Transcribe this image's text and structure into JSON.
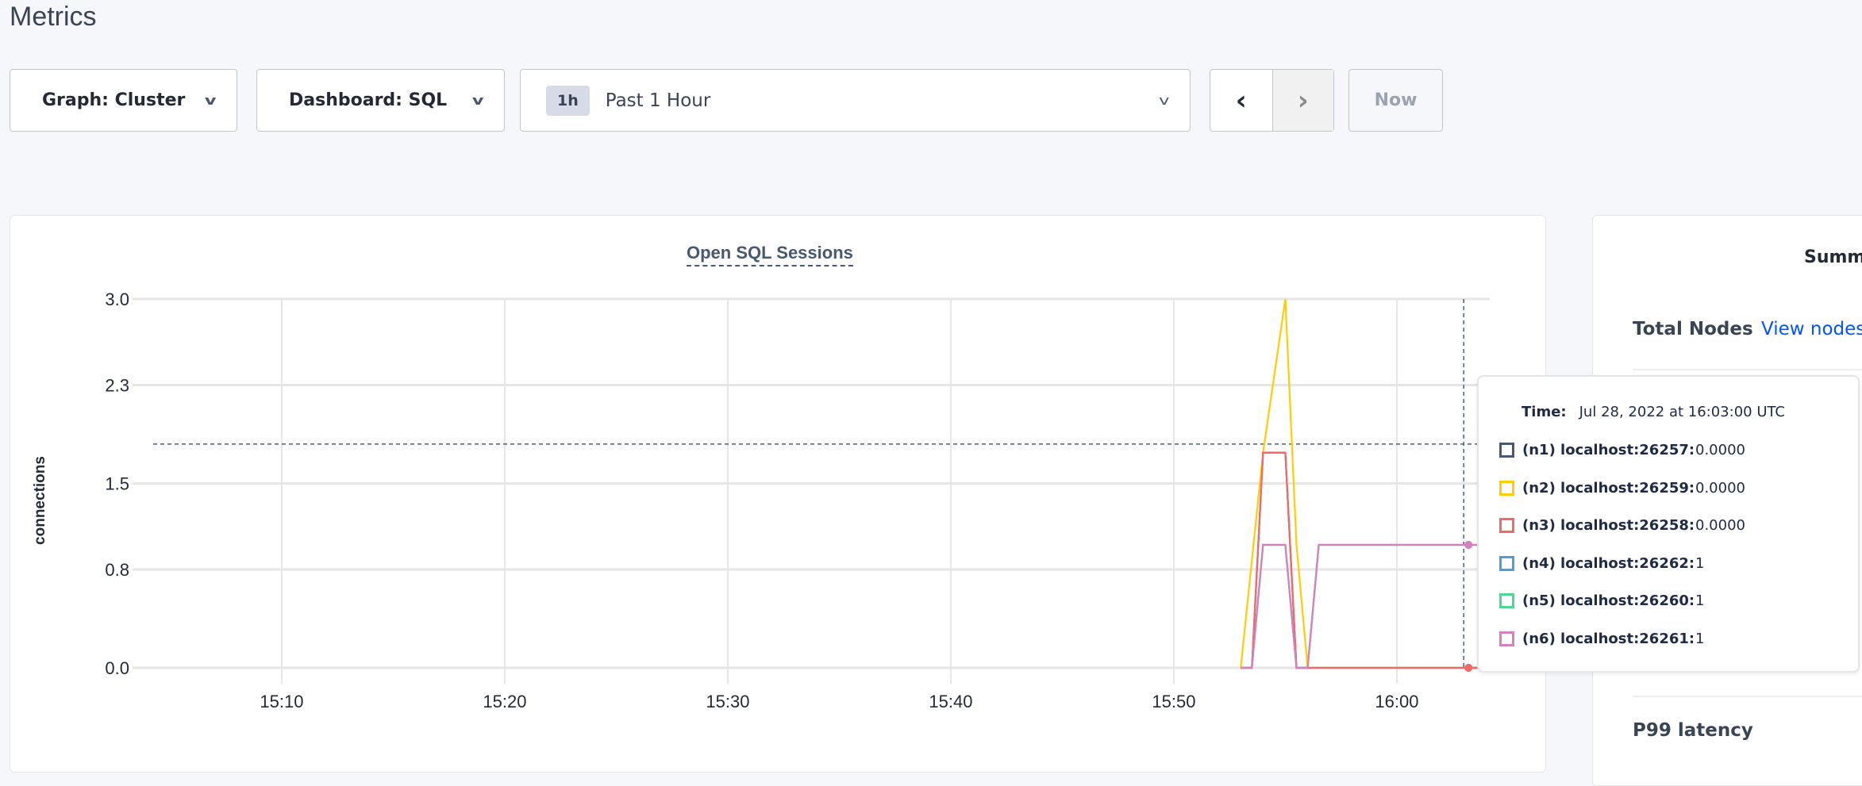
{
  "page": {
    "title": "Metrics"
  },
  "controls": {
    "graph": "Graph: Cluster",
    "dashboard": "Dashboard: SQL",
    "range_badge": "1h",
    "range_label": "Past 1 Hour",
    "prev": "‹",
    "next": "›",
    "now": "Now"
  },
  "sidebar": {
    "summary": "Summ",
    "total_nodes": "Total Nodes",
    "view_nodes": "View nodes",
    "p99": "P99 latency"
  },
  "chart_data": {
    "type": "line",
    "title": "Open SQL Sessions",
    "ylabel": "connections",
    "xlabel": "",
    "ylim": [
      0,
      3
    ],
    "yticks": [
      "0.0",
      "0.8",
      "1.5",
      "2.3",
      "3.0"
    ],
    "xlim": [
      "15:03:40",
      "16:04:10"
    ],
    "xticks": [
      "15:10",
      "15:20",
      "15:30",
      "15:40",
      "15:50",
      "16:00"
    ],
    "grid": true,
    "hover_time": "16:03:00",
    "hover_threshold": 1.82,
    "series": [
      {
        "name": "(n1) localhost:26257",
        "color": "#475872",
        "points": [
          [
            "15:53:00",
            0
          ],
          [
            "15:53:30",
            0
          ],
          [
            "15:54:00",
            1.75
          ],
          [
            "15:55:00",
            1.75
          ],
          [
            "15:55:30",
            0
          ],
          [
            "16:03:00",
            0
          ]
        ]
      },
      {
        "name": "(n4) localhost:26262",
        "color": "#4e9fd1",
        "points": [
          [
            "15:53:00",
            0
          ],
          [
            "15:53:30",
            0
          ],
          [
            "15:54:00",
            1
          ],
          [
            "15:55:00",
            1
          ],
          [
            "15:55:30",
            0
          ],
          [
            "15:56:00",
            0
          ],
          [
            "15:56:30",
            1
          ],
          [
            "16:03:00",
            1
          ]
        ]
      },
      {
        "name": "(n5) localhost:26260",
        "color": "#49d990",
        "points": [
          [
            "15:53:00",
            0
          ],
          [
            "15:53:30",
            0
          ],
          [
            "15:54:00",
            1
          ],
          [
            "15:55:00",
            1
          ],
          [
            "15:55:30",
            0
          ],
          [
            "15:56:00",
            0
          ],
          [
            "15:56:30",
            1
          ],
          [
            "16:03:00",
            1
          ]
        ]
      },
      {
        "name": "(n2) localhost:26259",
        "color": "#ffcd02",
        "points": [
          [
            "15:53:00",
            0
          ],
          [
            "15:54:00",
            1.75
          ],
          [
            "15:55:00",
            3
          ],
          [
            "15:55:30",
            1
          ],
          [
            "15:56:00",
            0
          ],
          [
            "16:03:00",
            0
          ]
        ]
      },
      {
        "name": "(n3) localhost:26258",
        "color": "#f16969",
        "points": [
          [
            "15:53:00",
            0
          ],
          [
            "15:53:30",
            0
          ],
          [
            "15:54:00",
            1.75
          ],
          [
            "15:55:00",
            1.75
          ],
          [
            "15:55:30",
            0
          ],
          [
            "16:03:00",
            0
          ]
        ]
      },
      {
        "name": "(n6) localhost:26261",
        "color": "#d77fbf",
        "points": [
          [
            "15:53:00",
            0
          ],
          [
            "15:53:30",
            0
          ],
          [
            "15:54:00",
            1
          ],
          [
            "15:55:00",
            1
          ],
          [
            "15:55:30",
            0
          ],
          [
            "15:56:00",
            0
          ],
          [
            "15:56:30",
            1
          ],
          [
            "16:03:00",
            1
          ]
        ]
      }
    ]
  },
  "tooltip": {
    "time_label": "Time:",
    "time_value": "Jul 28, 2022 at 16:03:00 UTC",
    "rows": [
      {
        "label": "(n1) localhost:26257:",
        "value": "0.0000",
        "color": "#475872"
      },
      {
        "label": "(n2) localhost:26259:",
        "value": "0.0000",
        "color": "#ffcd02"
      },
      {
        "label": "(n3) localhost:26258:",
        "value": "0.0000",
        "color": "#f16969"
      },
      {
        "label": "(n4) localhost:26262:",
        "value": "1",
        "color": "#4e9fd1"
      },
      {
        "label": "(n5) localhost:26260:",
        "value": "1",
        "color": "#49d990"
      },
      {
        "label": "(n6) localhost:26261:",
        "value": "1",
        "color": "#d77fbf"
      }
    ]
  }
}
